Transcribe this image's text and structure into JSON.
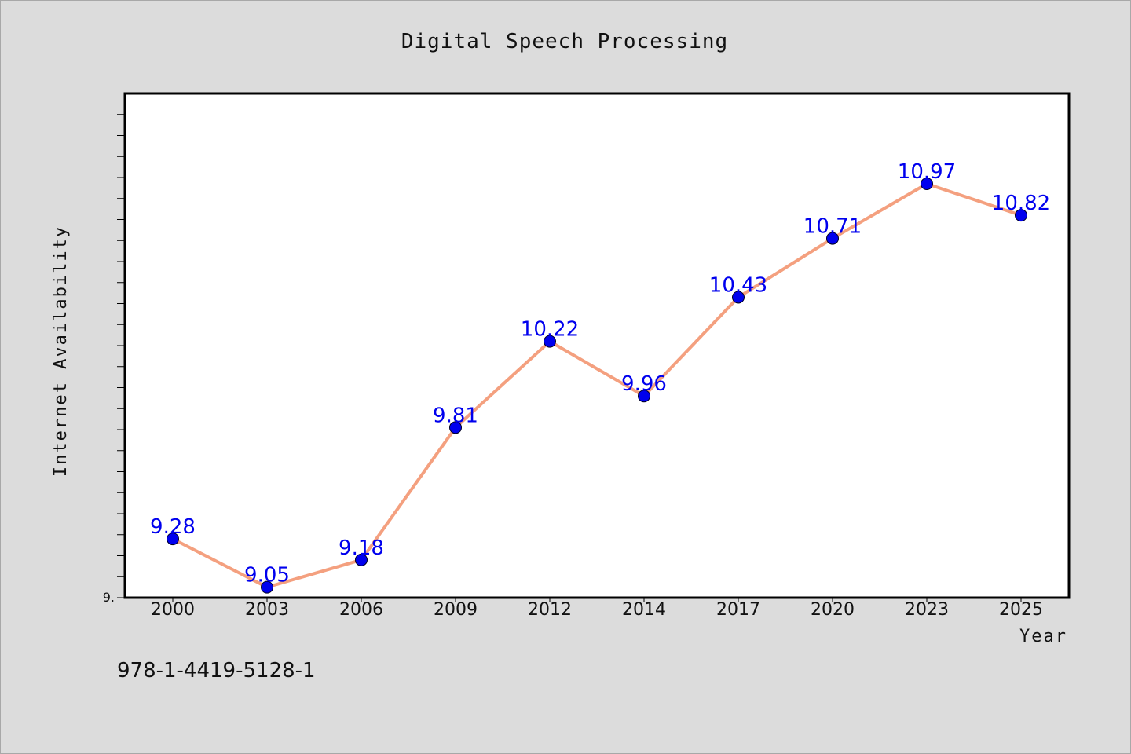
{
  "chart_data": {
    "type": "line",
    "title": "Digital Speech Processing",
    "xlabel": "Year",
    "ylabel": "Internet Availability",
    "categories": [
      "2000",
      "2003",
      "2006",
      "2009",
      "2012",
      "2014",
      "2017",
      "2020",
      "2023",
      "2025"
    ],
    "series": [
      {
        "values": [
          9.28,
          9.05,
          9.18,
          9.81,
          10.22,
          9.96,
          10.43,
          10.71,
          10.97,
          10.82
        ],
        "labels": [
          "9.28",
          "9.05",
          "9.18",
          "9.81",
          "10.22",
          "9.96",
          "10.43",
          "10.71",
          "10.97",
          "10.82"
        ],
        "line_color": "#f4a07f",
        "marker_color": "#0000ee",
        "label_color": "#0000ee"
      }
    ],
    "ylim": [
      9.0,
      11.4
    ],
    "y_tick_label": "9.",
    "y_minor_tick_step": 0.1,
    "grid": false,
    "legend": "none"
  },
  "footer": {
    "isbn": "978-1-4419-5128-1"
  },
  "colors": {
    "background": "#dcdcdc",
    "plot_background": "#ffffff",
    "axis": "#000000"
  }
}
